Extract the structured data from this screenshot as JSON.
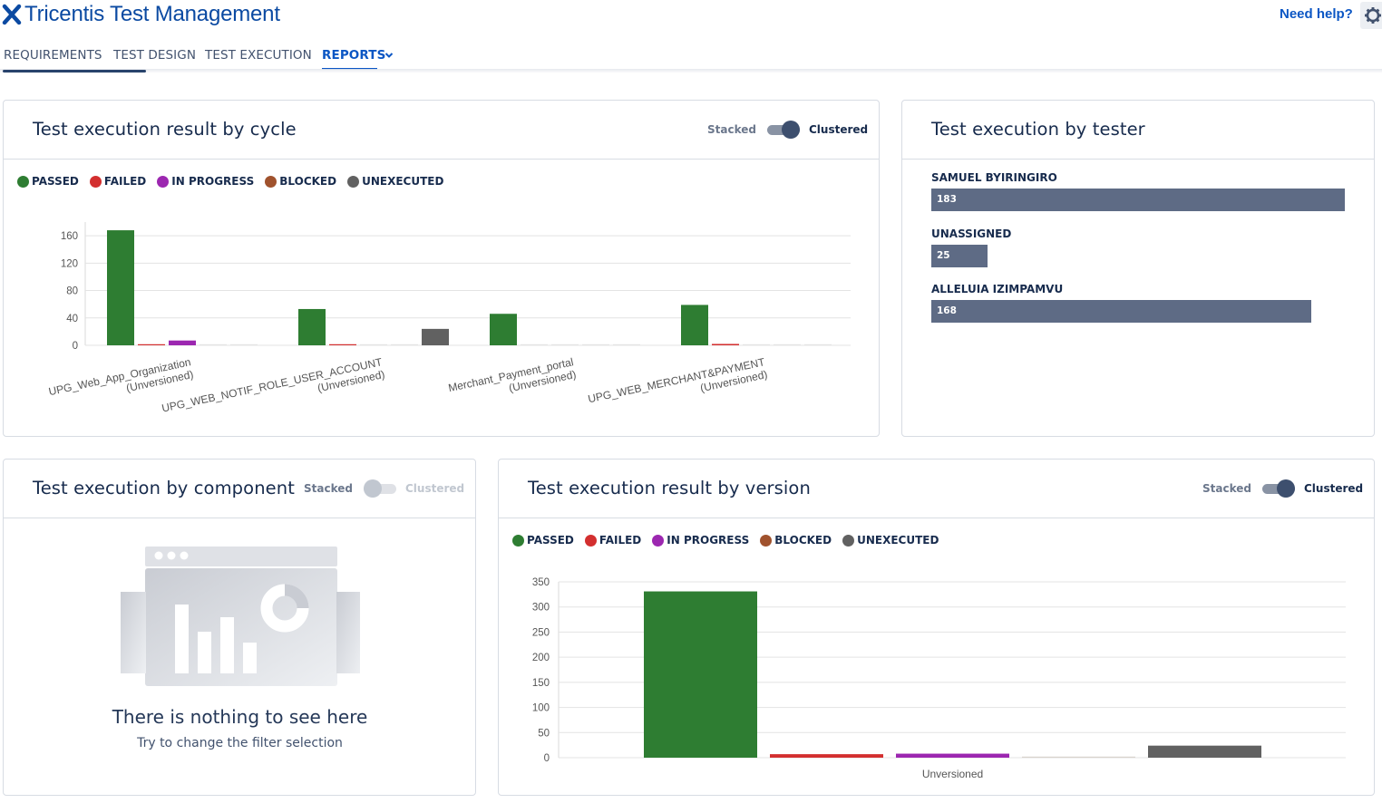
{
  "app": {
    "title": "Tricentis Test Management",
    "help_label": "Need help?",
    "logo_icon": "x-cross-icon",
    "settings_icon": "gear-icon"
  },
  "nav": {
    "tabs": [
      {
        "label": "REQUIREMENTS",
        "active": false
      },
      {
        "label": "TEST DESIGN",
        "active": false
      },
      {
        "label": "TEST EXECUTION",
        "active": false
      },
      {
        "label": "REPORTS",
        "active": true
      }
    ],
    "dropdown_icon": "chevron-down-icon"
  },
  "colors": {
    "passed": "#2e7d32",
    "failed": "#d32f2f",
    "in_progress": "#9c27b0",
    "blocked": "#a0522d",
    "unexecuted": "#616161",
    "tester_bar": "#5e6b85"
  },
  "legend": [
    "PASSED",
    "FAILED",
    "IN PROGRESS",
    "BLOCKED",
    "UNEXECUTED"
  ],
  "toggle_labels": {
    "stacked": "Stacked",
    "clustered": "Clustered"
  },
  "panels": {
    "by_cycle": {
      "title": "Test execution result by cycle",
      "mode": "Clustered"
    },
    "by_tester": {
      "title": "Test execution by tester",
      "testers": [
        {
          "name": "SAMUEL BYIRINGIRO",
          "value": 183
        },
        {
          "name": "UNASSIGNED",
          "value": 25
        },
        {
          "name": "ALLELUIA IZIMPAMVU",
          "value": 168
        }
      ]
    },
    "by_component": {
      "title": "Test execution by component",
      "mode": "Stacked",
      "empty_title": "There is nothing to see here",
      "empty_subtitle": "Try to change the filter selection"
    },
    "by_version": {
      "title": "Test execution result by version",
      "mode": "Clustered"
    }
  },
  "chart_data": [
    {
      "type": "bar",
      "title": "Test execution result by cycle",
      "categories": [
        [
          "UPG_Web_App_Organization",
          "(Unversioned)"
        ],
        [
          "UPG_WEB_NOTIF_ROLE_USER_ACCOUNT",
          "(Unversioned)"
        ],
        [
          "Merchant_Payment_portal",
          "(Unversioned)"
        ],
        [
          "UPG_WEB_MERCHANT&PAYMENT",
          "(Unversioned)"
        ]
      ],
      "series": [
        {
          "name": "PASSED",
          "values": [
            168,
            53,
            46,
            59
          ]
        },
        {
          "name": "FAILED",
          "values": [
            1,
            1,
            0,
            2
          ]
        },
        {
          "name": "IN PROGRESS",
          "values": [
            7,
            0,
            0,
            0
          ]
        },
        {
          "name": "BLOCKED",
          "values": [
            0,
            0,
            0,
            0
          ]
        },
        {
          "name": "UNEXECUTED",
          "values": [
            0,
            24,
            0,
            0
          ]
        }
      ],
      "yticks": [
        0,
        40,
        80,
        120,
        160
      ],
      "ylim": [
        0,
        180
      ],
      "grid": true,
      "legend": "top-left"
    },
    {
      "type": "bar",
      "title": "Test execution result by version",
      "categories": [
        "Unversioned"
      ],
      "series": [
        {
          "name": "PASSED",
          "values": [
            331
          ]
        },
        {
          "name": "FAILED",
          "values": [
            7
          ]
        },
        {
          "name": "IN PROGRESS",
          "values": [
            8
          ]
        },
        {
          "name": "BLOCKED",
          "values": [
            1
          ]
        },
        {
          "name": "UNEXECUTED",
          "values": [
            24
          ]
        }
      ],
      "yticks": [
        0,
        50,
        100,
        150,
        200,
        250,
        300,
        350
      ],
      "ylim": [
        0,
        350
      ],
      "grid": true,
      "legend": "top-left"
    }
  ]
}
